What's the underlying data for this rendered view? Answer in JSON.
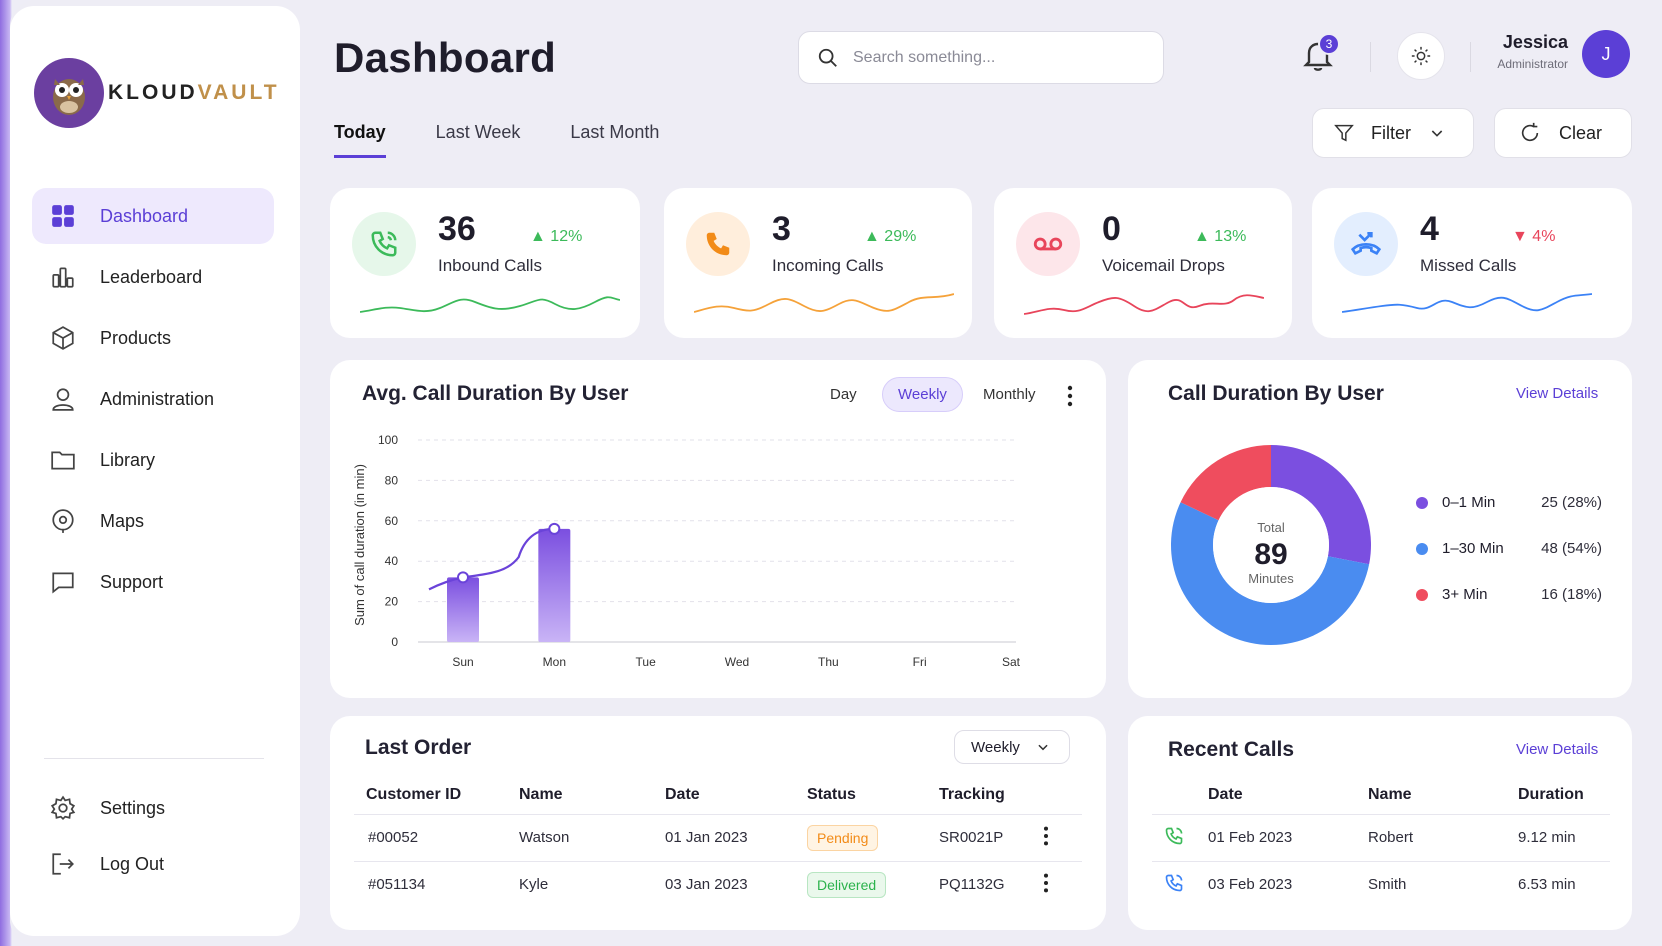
{
  "brand": {
    "name_part1": "KLOUD",
    "name_part2": "VAULT"
  },
  "sidebar": {
    "items": [
      {
        "label": "Dashboard",
        "icon": "grid-icon",
        "active": true
      },
      {
        "label": "Leaderboard",
        "icon": "bar-chart-icon"
      },
      {
        "label": "Products",
        "icon": "box-icon"
      },
      {
        "label": "Administration",
        "icon": "user-icon"
      },
      {
        "label": "Library",
        "icon": "folder-icon"
      },
      {
        "label": "Maps",
        "icon": "map-pin-icon"
      },
      {
        "label": "Support",
        "icon": "chat-icon"
      }
    ],
    "bottom": [
      {
        "label": "Settings",
        "icon": "gear-icon"
      },
      {
        "label": "Log Out",
        "icon": "logout-icon"
      }
    ]
  },
  "header": {
    "title": "Dashboard",
    "search_placeholder": "Search something...",
    "notifications_count": "3",
    "user": {
      "name": "Jessica",
      "role": "Administrator",
      "initial": "J"
    }
  },
  "tabs": [
    "Today",
    "Last Week",
    "Last Month"
  ],
  "actions": {
    "filter_label": "Filter",
    "clear_label": "Clear"
  },
  "stats": [
    {
      "value": "36",
      "label": "Inbound Calls",
      "change": "12%",
      "direction": "up",
      "color": "#3cba5a",
      "bg": "#e6f7ea",
      "icon": "phone-incoming-icon"
    },
    {
      "value": "3",
      "label": "Incoming Calls",
      "change": "29%",
      "direction": "up",
      "color": "#f28b18",
      "bg": "#ffeedc",
      "icon": "phone-icon"
    },
    {
      "value": "0",
      "label": "Voicemail Drops",
      "change": "13%",
      "direction": "up",
      "color": "#e8455b",
      "bg": "#fde6ea",
      "icon": "voicemail-icon"
    },
    {
      "value": "4",
      "label": "Missed Calls",
      "change": "4%",
      "direction": "down",
      "color": "#3b82f6",
      "bg": "#e3eefe",
      "icon": "phone-missed-icon"
    }
  ],
  "avg_chart": {
    "title": "Avg. Call Duration By User",
    "segments": [
      "Day",
      "Weekly",
      "Monthly"
    ],
    "active_segment": "Weekly"
  },
  "donut": {
    "title": "Call Duration By User",
    "link": "View Details",
    "center_label": "Total",
    "center_value": "89",
    "center_unit": "Minutes",
    "legend": [
      {
        "label": "0–1 Min",
        "value": "25 (28%)",
        "color": "#7b4fe0"
      },
      {
        "label": "1–30 Min",
        "value": "48 (54%)",
        "color": "#4a8cf0"
      },
      {
        "label": "3+ Min",
        "value": "16 (18%)",
        "color": "#ef4d5e"
      }
    ]
  },
  "chart_data": [
    {
      "type": "bar",
      "categories": [
        "Sun",
        "Mon",
        "Tue",
        "Wed",
        "Thu",
        "Fri",
        "Sat"
      ],
      "values": [
        32,
        56,
        0,
        0,
        0,
        0,
        0
      ],
      "ylabel": "Sum of call duration (in min)",
      "ylim": [
        0,
        100
      ],
      "yticks": [
        0,
        20,
        40,
        60,
        80,
        100
      ],
      "trend_line": true,
      "grid": true
    },
    {
      "type": "pie",
      "labels": [
        "0–1 Min",
        "1–30 Min",
        "3+ Min"
      ],
      "values": [
        25,
        48,
        16
      ],
      "total": 89
    }
  ],
  "last_order": {
    "title": "Last Order",
    "period": "Weekly",
    "columns": [
      "Customer ID",
      "Name",
      "Date",
      "Status",
      "Tracking"
    ],
    "rows": [
      {
        "id": "#00052",
        "name": "Watson",
        "date": "01 Jan 2023",
        "status": "Pending",
        "tracking": "SR0021P"
      },
      {
        "id": "#051134",
        "name": "Kyle",
        "date": "03 Jan 2023",
        "status": "Delivered",
        "tracking": "PQ1132G"
      }
    ]
  },
  "recent_calls": {
    "title": "Recent Calls",
    "link": "View Details",
    "columns": [
      "Date",
      "Name",
      "Duration"
    ],
    "rows": [
      {
        "date": "01 Feb 2023",
        "name": "Robert",
        "duration": "9.12 min",
        "type": "outgoing",
        "color": "#3cba5a"
      },
      {
        "date": "03 Feb 2023",
        "name": "Smith",
        "duration": "6.53 min",
        "type": "incoming",
        "color": "#3b82f6"
      }
    ]
  }
}
